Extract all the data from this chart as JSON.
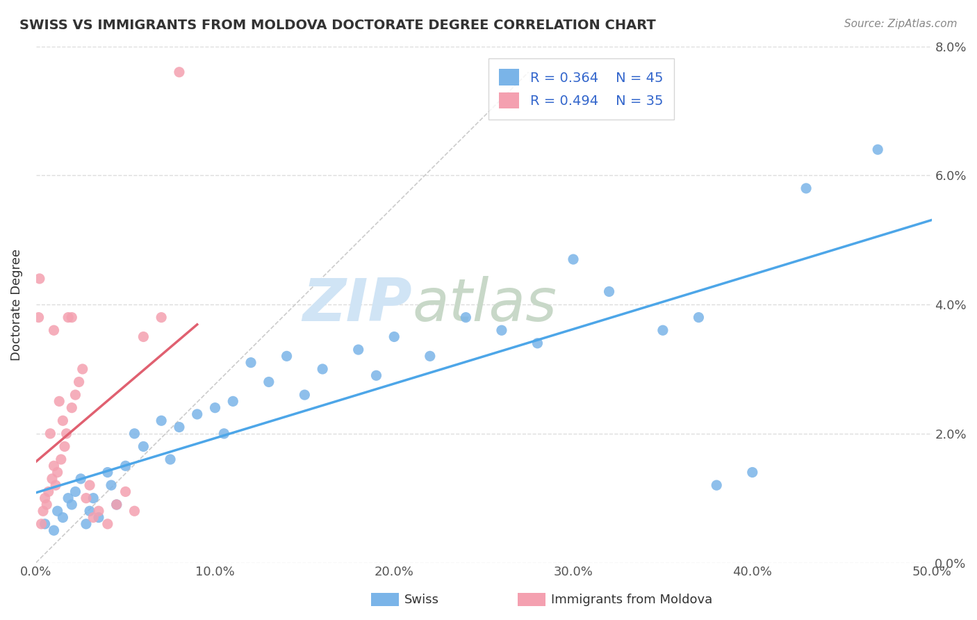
{
  "title": "SWISS VS IMMIGRANTS FROM MOLDOVA DOCTORATE DEGREE CORRELATION CHART",
  "source": "Source: ZipAtlas.com",
  "ylabel": "Doctorate Degree",
  "xlim": [
    0.0,
    50.0
  ],
  "ylim": [
    0.0,
    8.0
  ],
  "watermark_zip": "ZIP",
  "watermark_atlas": "atlas",
  "legend_swiss_R": "R = 0.364",
  "legend_swiss_N": "N = 45",
  "legend_moldova_R": "R = 0.494",
  "legend_moldova_N": "N = 35",
  "swiss_color": "#7ab4e8",
  "moldova_color": "#f4a0b0",
  "swiss_line_color": "#4da6e8",
  "moldova_line_color": "#e06070",
  "ref_line_color": "#cccccc",
  "background_color": "#ffffff",
  "legend_text_color": "#3366cc",
  "swiss_dots": [
    [
      0.5,
      0.6
    ],
    [
      1.0,
      0.5
    ],
    [
      1.2,
      0.8
    ],
    [
      1.5,
      0.7
    ],
    [
      1.8,
      1.0
    ],
    [
      2.0,
      0.9
    ],
    [
      2.2,
      1.1
    ],
    [
      2.5,
      1.3
    ],
    [
      2.8,
      0.6
    ],
    [
      3.0,
      0.8
    ],
    [
      3.2,
      1.0
    ],
    [
      3.5,
      0.7
    ],
    [
      4.0,
      1.4
    ],
    [
      4.2,
      1.2
    ],
    [
      4.5,
      0.9
    ],
    [
      5.0,
      1.5
    ],
    [
      5.5,
      2.0
    ],
    [
      6.0,
      1.8
    ],
    [
      7.0,
      2.2
    ],
    [
      7.5,
      1.6
    ],
    [
      8.0,
      2.1
    ],
    [
      9.0,
      2.3
    ],
    [
      10.0,
      2.4
    ],
    [
      10.5,
      2.0
    ],
    [
      11.0,
      2.5
    ],
    [
      12.0,
      3.1
    ],
    [
      13.0,
      2.8
    ],
    [
      14.0,
      3.2
    ],
    [
      15.0,
      2.6
    ],
    [
      16.0,
      3.0
    ],
    [
      18.0,
      3.3
    ],
    [
      19.0,
      2.9
    ],
    [
      20.0,
      3.5
    ],
    [
      22.0,
      3.2
    ],
    [
      24.0,
      3.8
    ],
    [
      26.0,
      3.6
    ],
    [
      28.0,
      3.4
    ],
    [
      30.0,
      4.7
    ],
    [
      32.0,
      4.2
    ],
    [
      35.0,
      3.6
    ],
    [
      37.0,
      3.8
    ],
    [
      38.0,
      1.2
    ],
    [
      40.0,
      1.4
    ],
    [
      43.0,
      5.8
    ],
    [
      47.0,
      6.4
    ]
  ],
  "moldova_dots": [
    [
      0.3,
      0.6
    ],
    [
      0.4,
      0.8
    ],
    [
      0.5,
      1.0
    ],
    [
      0.6,
      0.9
    ],
    [
      0.7,
      1.1
    ],
    [
      0.8,
      2.0
    ],
    [
      0.9,
      1.3
    ],
    [
      1.0,
      1.5
    ],
    [
      1.1,
      1.2
    ],
    [
      1.2,
      1.4
    ],
    [
      1.3,
      2.5
    ],
    [
      1.4,
      1.6
    ],
    [
      1.5,
      2.2
    ],
    [
      1.6,
      1.8
    ],
    [
      1.7,
      2.0
    ],
    [
      1.8,
      3.8
    ],
    [
      2.0,
      2.4
    ],
    [
      2.2,
      2.6
    ],
    [
      2.4,
      2.8
    ],
    [
      2.6,
      3.0
    ],
    [
      2.8,
      1.0
    ],
    [
      3.0,
      1.2
    ],
    [
      3.2,
      0.7
    ],
    [
      3.5,
      0.8
    ],
    [
      4.0,
      0.6
    ],
    [
      4.5,
      0.9
    ],
    [
      5.0,
      1.1
    ],
    [
      5.5,
      0.8
    ],
    [
      6.0,
      3.5
    ],
    [
      7.0,
      3.8
    ],
    [
      8.0,
      7.6
    ],
    [
      0.2,
      4.4
    ],
    [
      0.15,
      3.8
    ],
    [
      1.0,
      3.6
    ],
    [
      2.0,
      3.8
    ]
  ]
}
